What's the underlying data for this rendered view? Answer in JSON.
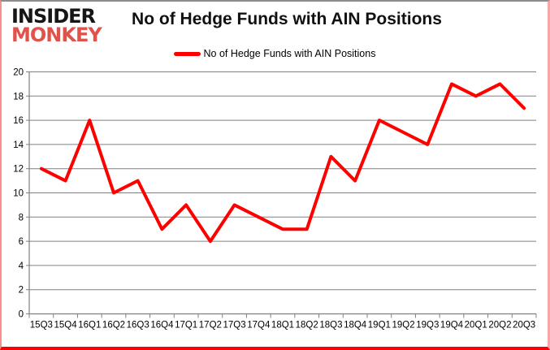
{
  "logo": {
    "line1": "INSIDER",
    "line2": "MONKEY"
  },
  "header": {
    "title": "No of Hedge Funds with AIN Positions"
  },
  "legend": {
    "label": "No of Hedge Funds with AIN Positions"
  },
  "colors": {
    "line_red": "#ff0000",
    "logo_red": "#e0524a",
    "gridline_gray": "#808080",
    "axis_gray": "#808080",
    "label_black": "#000000",
    "border_bottom_red": "#fd0002",
    "border_side_pink": "#f5a7a4",
    "border_top_gray": "#8c8c8c"
  },
  "chart_data": {
    "type": "line",
    "title": "No of Hedge Funds with AIN Positions",
    "series_name": "No of Hedge Funds with AIN Positions",
    "categories": [
      "15Q3",
      "15Q4",
      "16Q1",
      "16Q2",
      "16Q3",
      "16Q4",
      "17Q1",
      "17Q2",
      "17Q3",
      "17Q4",
      "18Q1",
      "18Q2",
      "18Q3",
      "18Q4",
      "19Q1",
      "19Q2",
      "19Q3",
      "19Q4",
      "20Q1",
      "20Q2",
      "20Q3"
    ],
    "values": [
      12,
      11,
      16,
      10,
      11,
      7,
      9,
      6,
      9,
      8,
      7,
      7,
      13,
      11,
      16,
      15,
      14,
      19,
      18,
      19,
      17
    ],
    "xlabel": "",
    "ylabel": "",
    "ylim": [
      0,
      20
    ],
    "ytick_step": 2,
    "grid": true,
    "legend_position": "top",
    "line_color": "#ff0000"
  }
}
